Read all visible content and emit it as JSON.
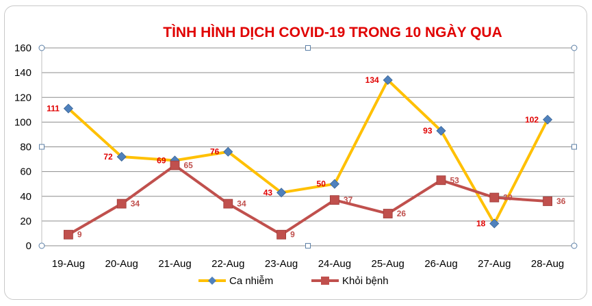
{
  "chart_data": {
    "type": "line",
    "title": "TÌNH HÌNH DỊCH COVID-19 TRONG 10 NGÀY QUA",
    "xlabel": "",
    "ylabel": "",
    "categories": [
      "19-Aug",
      "20-Aug",
      "21-Aug",
      "22-Aug",
      "23-Aug",
      "24-Aug",
      "25-Aug",
      "26-Aug",
      "27-Aug",
      "28-Aug"
    ],
    "series": [
      {
        "name": "Ca nhiễm",
        "values": [
          111,
          72,
          69,
          76,
          43,
          50,
          134,
          93,
          18,
          102
        ],
        "color": "#FFC000",
        "marker": "diamond",
        "marker_color": "#4F81BD",
        "label_color": "#E00000"
      },
      {
        "name": "Khỏi bệnh",
        "values": [
          9,
          34,
          65,
          34,
          9,
          37,
          26,
          53,
          39,
          36
        ],
        "color": "#C0504D",
        "marker": "square",
        "marker_color": "#C0504D",
        "label_color": "#C0504D"
      }
    ],
    "ylim": [
      0,
      160
    ],
    "yticks": [
      0,
      20,
      40,
      60,
      80,
      100,
      120,
      140,
      160
    ],
    "grid": true,
    "legend": "bottom",
    "title_color": "#E00000"
  }
}
